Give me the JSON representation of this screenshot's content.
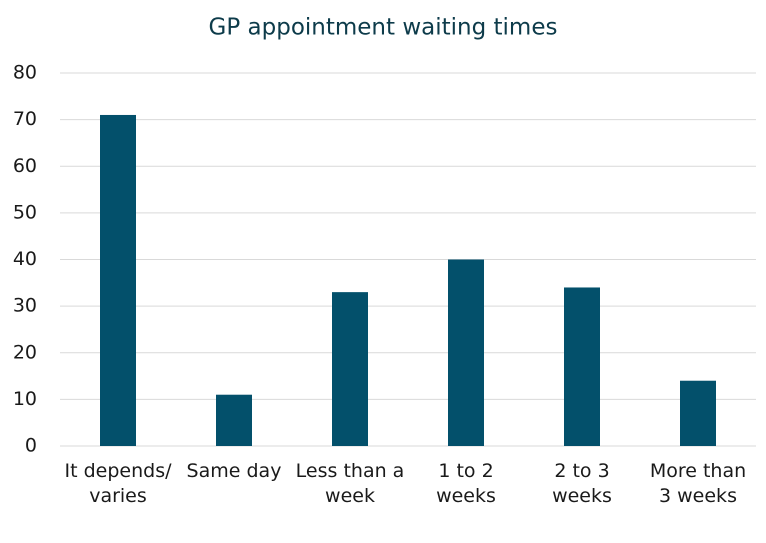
{
  "chart_data": {
    "type": "bar",
    "title": "GP appointment waiting times",
    "categories": [
      "It depends/ varies",
      "Same day",
      "Less than a week",
      "1 to 2 weeks",
      "2 to 3 weeks",
      "More than 3 weeks"
    ],
    "values": [
      71,
      11,
      33,
      40,
      34,
      14
    ],
    "color": "#03506b",
    "ylim": [
      0,
      80
    ],
    "yticks": [
      0,
      10,
      20,
      30,
      40,
      50,
      60,
      70,
      80
    ],
    "grid": true
  }
}
